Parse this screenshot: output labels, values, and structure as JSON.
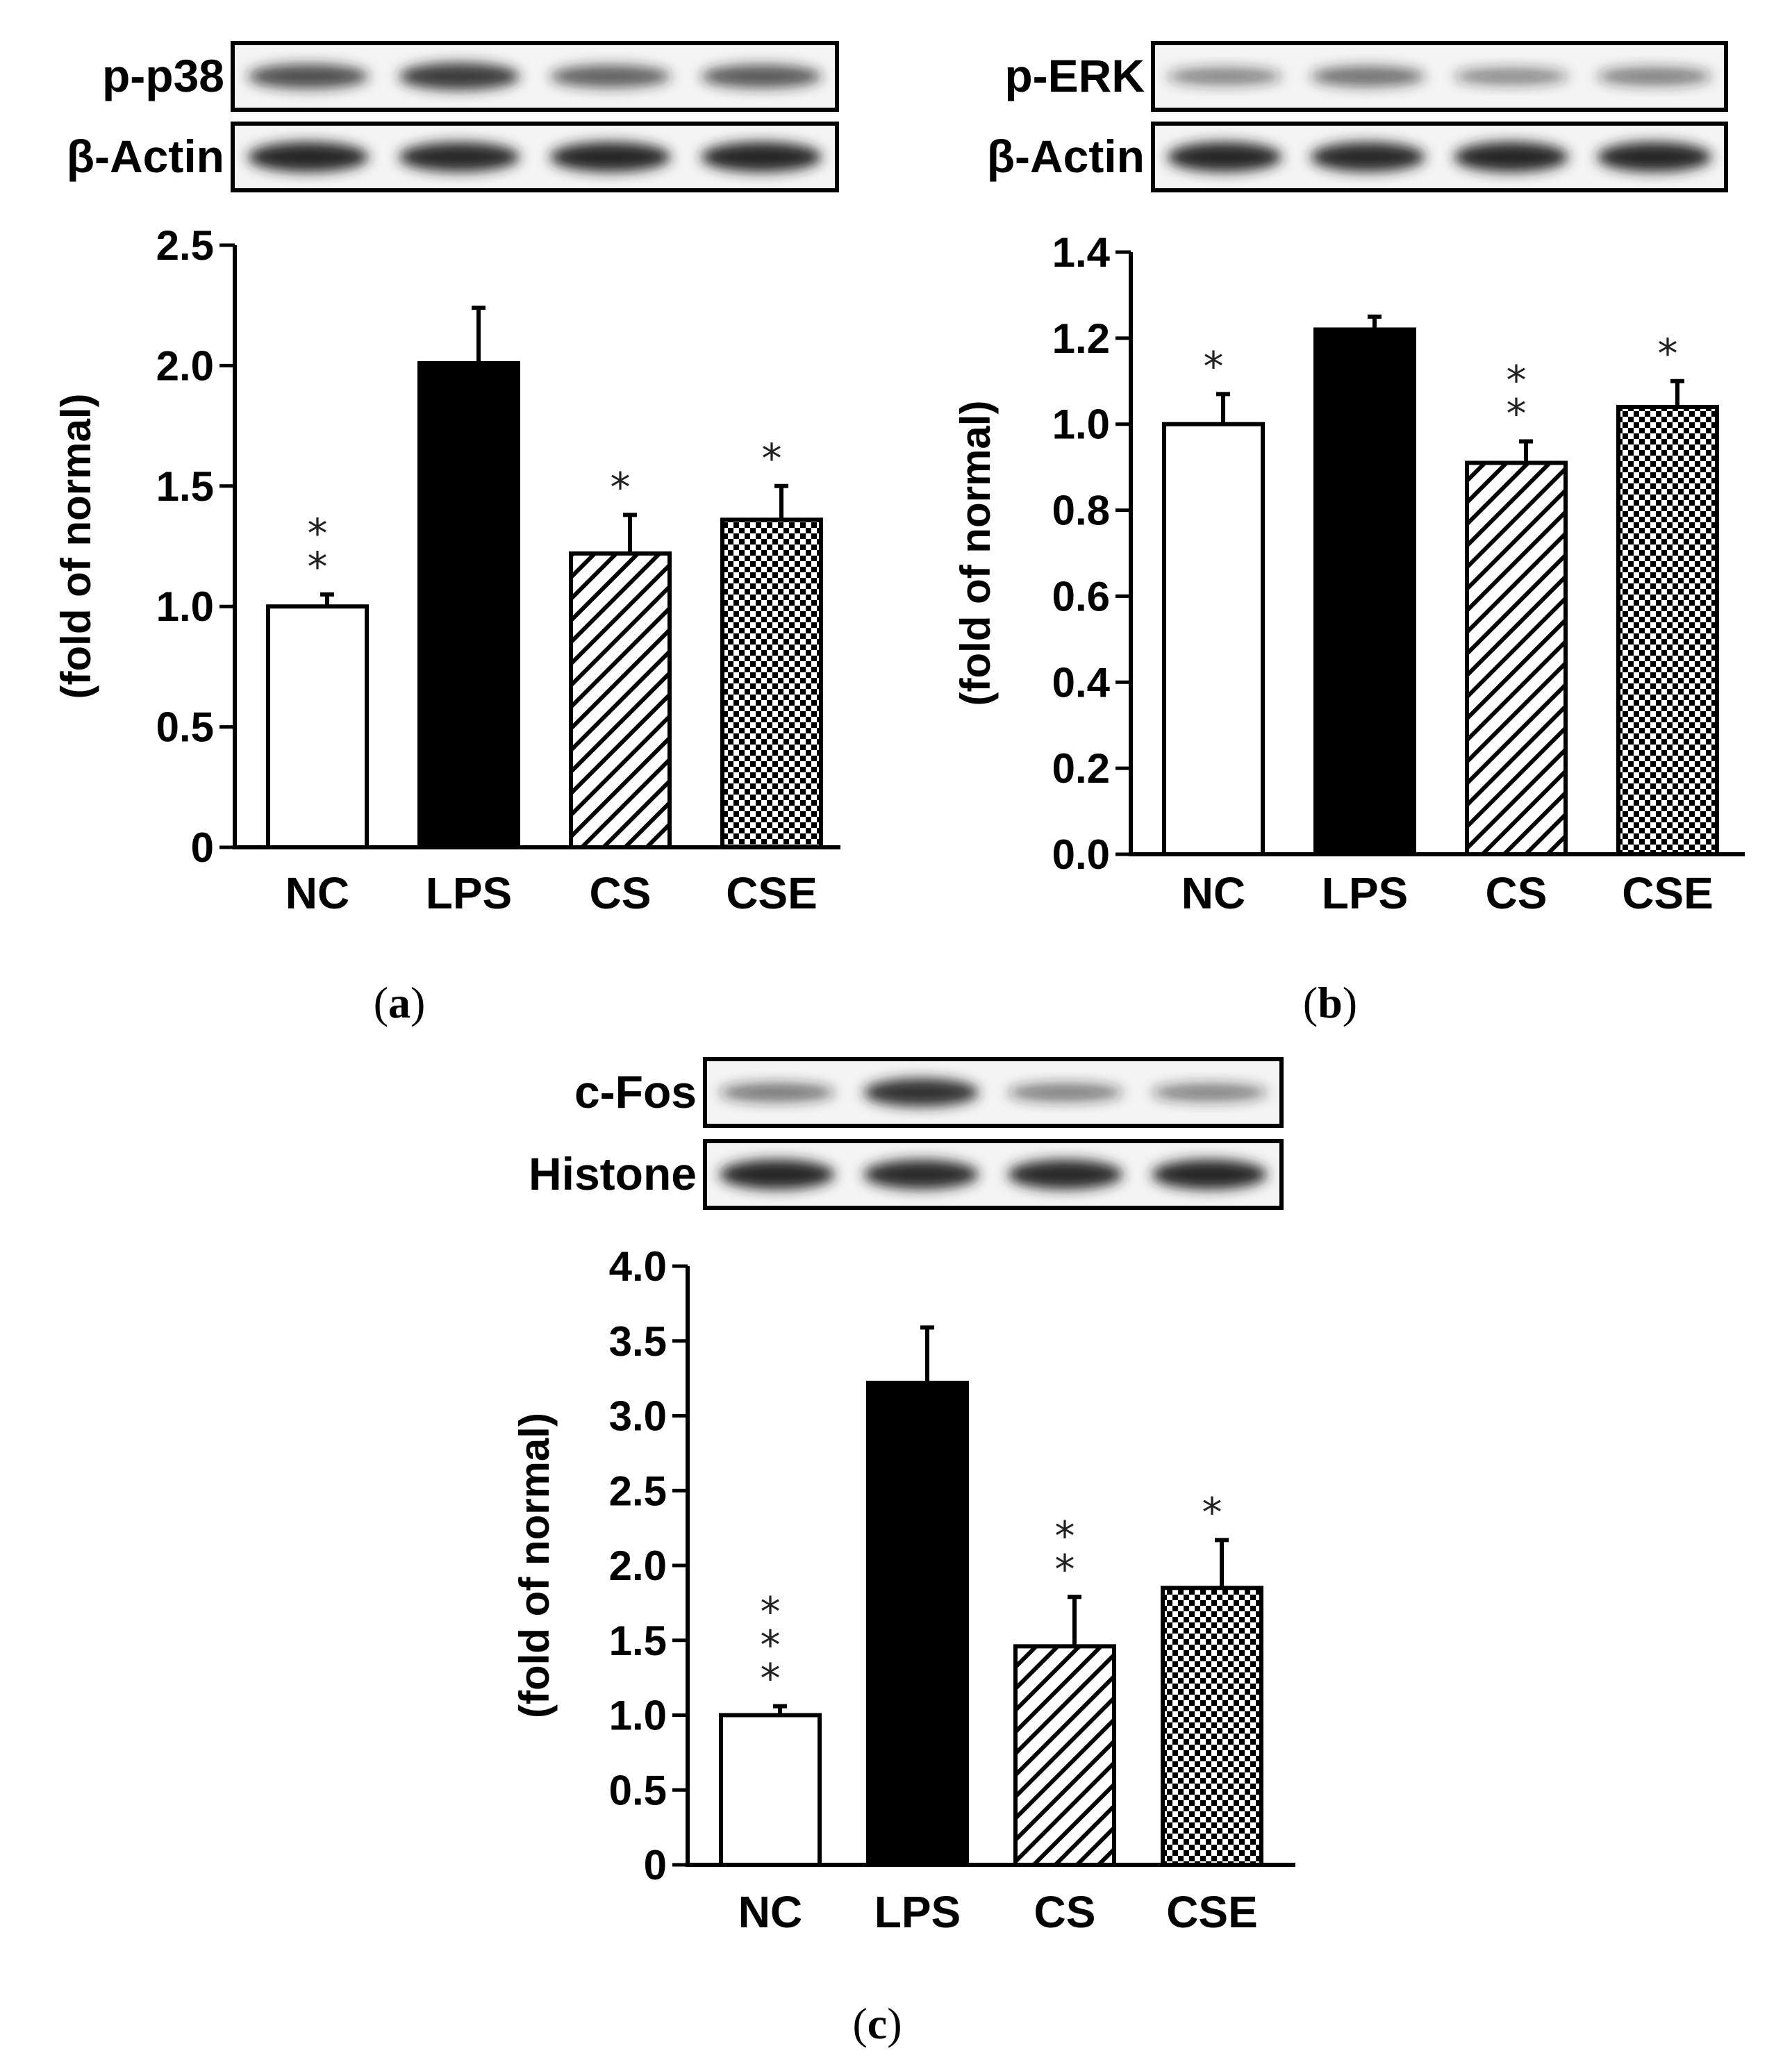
{
  "colors": {
    "axis": "#000000",
    "bar_open": "#ffffff",
    "bar_solid": "#000000",
    "band": "#222222"
  },
  "chart_data": [
    {
      "type": "bar",
      "panel_label": "a",
      "blots": [
        {
          "label": "p-p38",
          "intensities": [
            0.72,
            0.85,
            0.62,
            0.66
          ]
        },
        {
          "label": "β-Actin",
          "intensities": [
            0.98,
            0.96,
            0.97,
            0.98
          ]
        }
      ],
      "ylabel": "(fold of normal)",
      "ylim": [
        0,
        2.5
      ],
      "yticks": [
        "0",
        "0.5",
        "1.0",
        "1.5",
        "2.0",
        "2.5"
      ],
      "categories": [
        "NC",
        "LPS",
        "CS",
        "CSE"
      ],
      "values": [
        1.0,
        2.01,
        1.22,
        1.36
      ],
      "errors": [
        0.05,
        0.23,
        0.16,
        0.14
      ],
      "fills": [
        "open",
        "solid",
        "hatch",
        "checker"
      ],
      "significance": [
        "**",
        "",
        "*",
        "*"
      ]
    },
    {
      "type": "bar",
      "panel_label": "b",
      "blots": [
        {
          "label": "p-ERK",
          "intensities": [
            0.38,
            0.52,
            0.36,
            0.42
          ]
        },
        {
          "label": "β-Actin",
          "intensities": [
            0.97,
            0.96,
            0.98,
            0.97
          ]
        }
      ],
      "ylabel": "(fold of normal)",
      "ylim": [
        0,
        1.4
      ],
      "yticks": [
        "0.0",
        "0.2",
        "0.4",
        "0.6",
        "0.8",
        "1.0",
        "1.2",
        "1.4"
      ],
      "categories": [
        "NC",
        "LPS",
        "CS",
        "CSE"
      ],
      "values": [
        1.0,
        1.22,
        0.91,
        1.04
      ],
      "errors": [
        0.07,
        0.03,
        0.05,
        0.06
      ],
      "fills": [
        "open",
        "solid",
        "hatch",
        "checker"
      ],
      "significance": [
        "*",
        "",
        "**",
        "*"
      ]
    },
    {
      "type": "bar",
      "panel_label": "c",
      "blots": [
        {
          "label": "c-Fos",
          "intensities": [
            0.45,
            0.9,
            0.42,
            0.4
          ]
        },
        {
          "label": "Histone",
          "intensities": [
            0.97,
            0.95,
            0.96,
            0.97
          ]
        }
      ],
      "ylabel": "(fold of normal)",
      "ylim": [
        0,
        4.0
      ],
      "yticks": [
        "0",
        "0.5",
        "1.0",
        "1.5",
        "2.0",
        "2.5",
        "3.0",
        "3.5",
        "4.0"
      ],
      "categories": [
        "NC",
        "LPS",
        "CS",
        "CSE"
      ],
      "values": [
        1.0,
        3.22,
        1.46,
        1.85
      ],
      "errors": [
        0.06,
        0.37,
        0.33,
        0.32
      ],
      "fills": [
        "open",
        "solid",
        "hatch",
        "checker"
      ],
      "significance": [
        "***",
        "",
        "**",
        "*"
      ]
    }
  ]
}
